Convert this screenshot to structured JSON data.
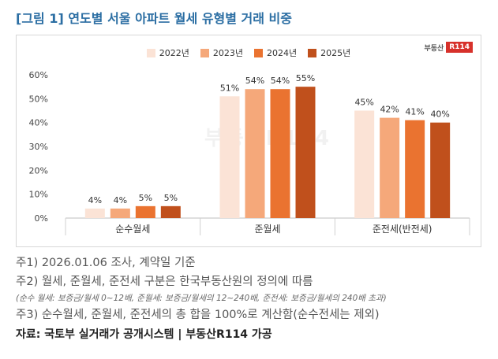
{
  "title": "[그림 1] 연도별 서울 아파트 월세 유형별 거래 비중",
  "brand": {
    "text": "부동산",
    "box": "R114"
  },
  "watermark": "부동산R114",
  "chart_data": {
    "type": "bar",
    "title": "",
    "categories": [
      "순수월세",
      "준월세",
      "준전세(반전세)"
    ],
    "series": [
      {
        "name": "2022년",
        "values": [
          4,
          51,
          45
        ],
        "labels": [
          "4%",
          "51%",
          "45%"
        ],
        "color": "#fbe3d6"
      },
      {
        "name": "2023년",
        "values": [
          4,
          54,
          42
        ],
        "labels": [
          "4%",
          "54%",
          "42%"
        ],
        "color": "#f5a87a"
      },
      {
        "name": "2024년",
        "values": [
          5,
          54,
          41
        ],
        "labels": [
          "5%",
          "54%",
          "41%"
        ],
        "color": "#ea7330"
      },
      {
        "name": "2025년",
        "values": [
          5,
          55,
          40
        ],
        "labels": [
          "5%",
          "55%",
          "40%"
        ],
        "color": "#c0501c"
      }
    ],
    "yticks": [
      "0%",
      "10%",
      "20%",
      "30%",
      "40%",
      "50%",
      "60%"
    ],
    "ylim": [
      0,
      60
    ],
    "grid": false,
    "legend": "top-center",
    "xlabel": "",
    "ylabel": ""
  },
  "notes": {
    "n1": "주1) 2026.01.06 조사, 계약일 기준",
    "n2": "주2) 월세, 준월세, 준전세 구분은 한국부동산원의 정의에 따름",
    "n2_detail": "(순수 월세: 보증금/월세 0~12배, 준월세: 보증금/월세의 12~240배, 준전세: 보증금/월세의 240배 초과)",
    "n3": "주3) 순수월세, 준월세, 준전세의 총 합을 100%로 계산함(순수전세는 제외)",
    "source": "자료: 국토부 실거래가 공개시스템 | 부동산R114 가공"
  }
}
